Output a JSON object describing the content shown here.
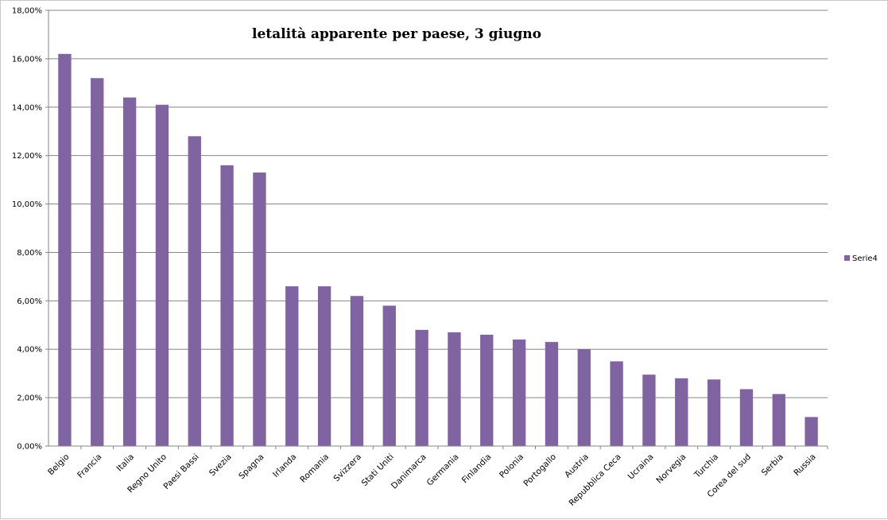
{
  "chart_data": {
    "type": "bar",
    "title": "letalità apparente per paese, 3 giugno",
    "xlabel": "",
    "ylabel": "",
    "ylim": [
      0,
      18
    ],
    "ytick_values": [
      0,
      2,
      4,
      6,
      8,
      10,
      12,
      14,
      16,
      18
    ],
    "ytick_labels": [
      "0,00%",
      "2,00%",
      "4,00%",
      "6,00%",
      "8,00%",
      "10,00%",
      "12,00%",
      "14,00%",
      "16,00%",
      "18,00%"
    ],
    "grid": true,
    "legend_position": "right",
    "bar_color": "#8064a2",
    "categories": [
      "Belgio",
      "Francia",
      "Italia",
      "Regno Unito",
      "Paesi Bassi",
      "Svezia",
      "Spagna",
      "Irlanda",
      "Romania",
      "Svizzera",
      "Stati Uniti",
      "Danimarca",
      "Germania",
      "Finlandia",
      "Polonia",
      "Portogallo",
      "Austria",
      "Repubblica Ceca",
      "Ucraina",
      "Norvegia",
      "Turchia",
      "Corea del sud",
      "Serbia",
      "Russia"
    ],
    "series": [
      {
        "name": "Serie4",
        "values": [
          16.2,
          15.2,
          14.4,
          14.1,
          12.8,
          11.6,
          11.3,
          6.6,
          6.6,
          6.2,
          5.8,
          4.8,
          4.7,
          4.6,
          4.4,
          4.3,
          4.0,
          3.5,
          2.95,
          2.8,
          2.75,
          2.35,
          2.15,
          1.2
        ]
      }
    ]
  }
}
